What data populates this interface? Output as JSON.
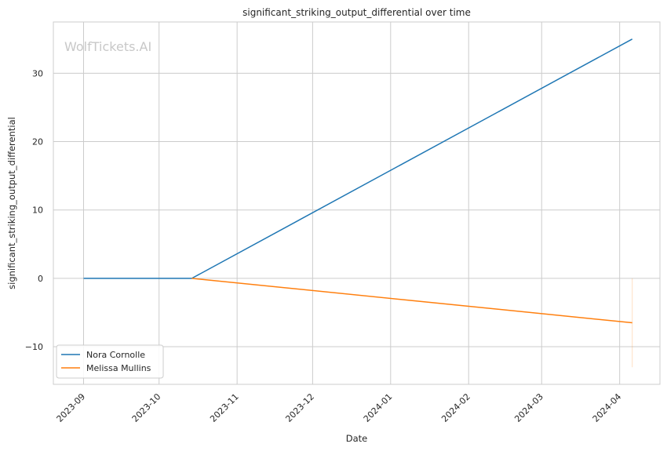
{
  "chart_data": {
    "type": "line",
    "title": "significant_striking_output_differential over time",
    "xlabel": "Date",
    "ylabel": "significant_striking_output_differential",
    "watermark": "WolfTickets.AI",
    "x_ticks": [
      "2023-09",
      "2023-10",
      "2023-11",
      "2023-12",
      "2024-01",
      "2024-02",
      "2024-03",
      "2024-04"
    ],
    "y_ticks": [
      -10,
      0,
      10,
      20,
      30
    ],
    "xlim": [
      "2023-08-20",
      "2024-04-17"
    ],
    "ylim": [
      -15.5,
      37.5
    ],
    "grid": true,
    "legend_position": "bottom-left",
    "series": [
      {
        "name": "Nora Cornolle",
        "color": "#1f77b4",
        "points": [
          {
            "x": "2023-09-01",
            "y": 0
          },
          {
            "x": "2023-10-14",
            "y": 0
          },
          {
            "x": "2024-04-06",
            "y": 35
          }
        ]
      },
      {
        "name": "Melissa Mullins",
        "color": "#ff7f0e",
        "points": [
          {
            "x": "2023-10-14",
            "y": 0
          },
          {
            "x": "2024-04-06",
            "y": -6.5
          }
        ],
        "band": {
          "x": "2024-04-06",
          "y_min": -13,
          "y_max": 0
        }
      }
    ]
  }
}
